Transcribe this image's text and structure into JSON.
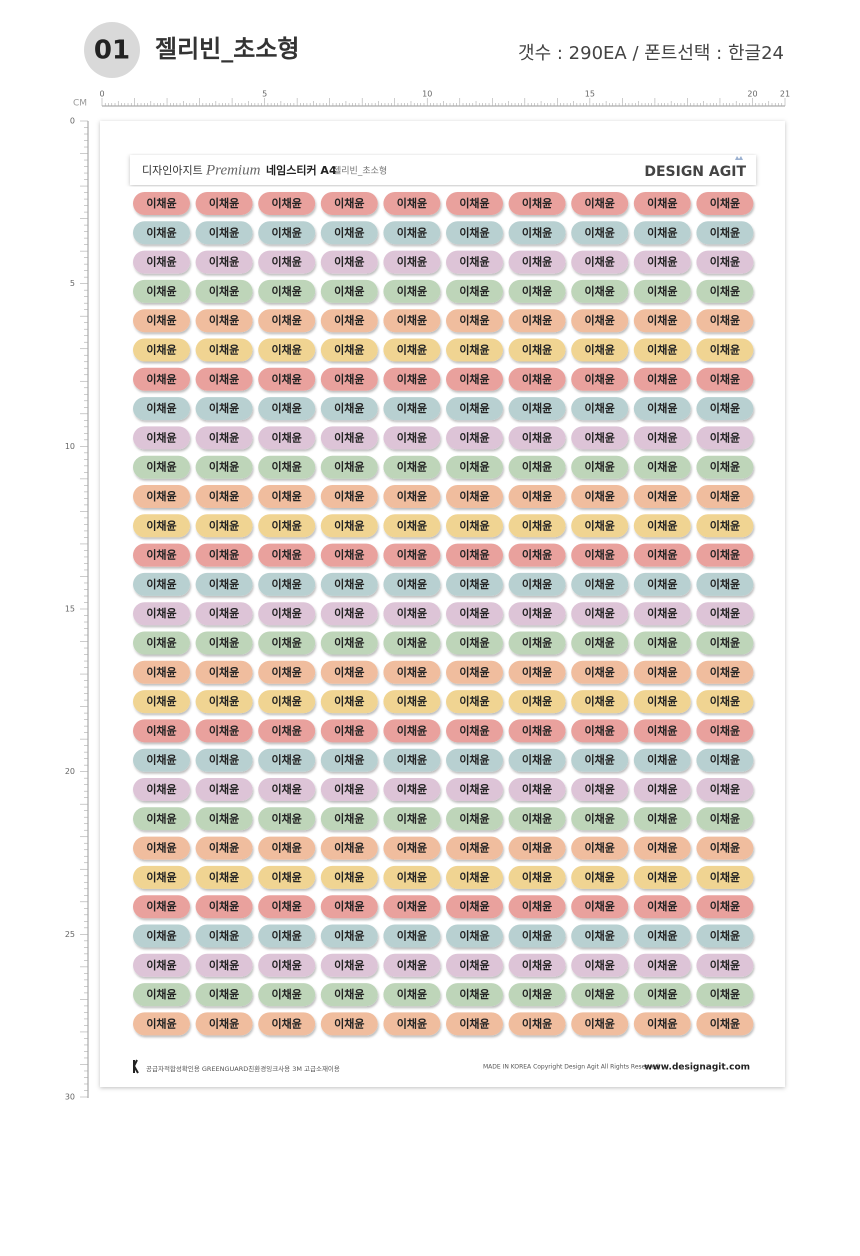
{
  "header": {
    "number": "01",
    "title": "젤리빈_초소형",
    "info": "갯수 : 290EA /  폰트선택 : 한글24"
  },
  "ruler": {
    "unit": "CM",
    "top_labels": [
      "0",
      "5",
      "10",
      "15",
      "20",
      "21"
    ],
    "left_labels": [
      "0",
      "5",
      "10",
      "15",
      "20",
      "25",
      "30"
    ]
  },
  "sheet": {
    "brand_kr": "디자인아지트",
    "premium": "Premium",
    "product": "네임스티커 A4",
    "subtitle": "젤리빈_초소형",
    "logo": "DESIGN AGIT",
    "sticker_label": "이채윤",
    "sticker_colors": [
      "#e9a19d",
      "#b8d0d1",
      "#ddc4d7",
      "#bed5b9",
      "#f0bd9e",
      "#f0d492"
    ],
    "footer_left": "공급자적합성확인용   GREENGUARD친환경잉크사용   3M 고급소재이용",
    "footer_copyright": "MADE IN KOREA    Copyright Design Agit All Rights Reserved",
    "footer_url": "www.designagit.com"
  }
}
